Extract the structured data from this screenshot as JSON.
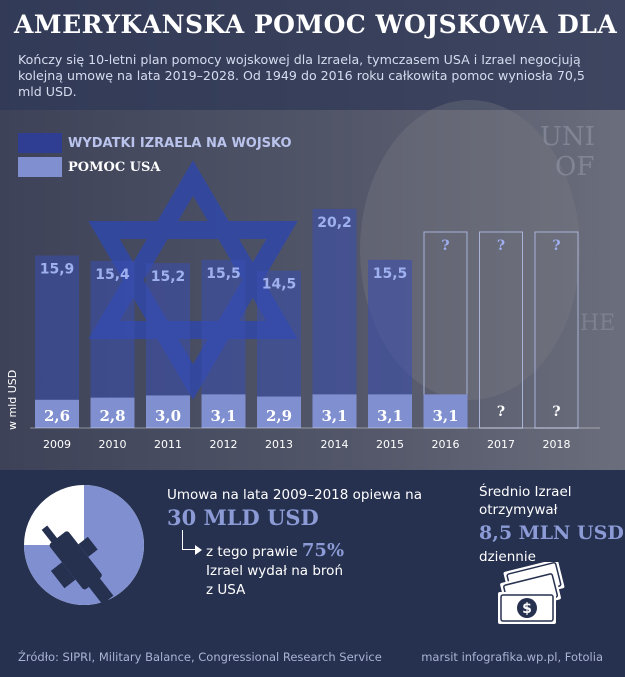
{
  "title": "AMERYKANSKA POMOC WOJSKOWA DLA IZRAELA",
  "subtitle": "Kończy się 10-letni plan pomocy wojskowej dla Izraela, tymczasem USA i Izrael negocjują kolejną umowę na lata 2019–2028. Od 1949 do 2016 roku całkowita pomoc wyniosła 70,5 mld USD.",
  "colors": {
    "background": "#26304f",
    "spending_bar": "#3a4a9a",
    "aid_bar": "#7f8fd0",
    "accent": "#8c9bd6"
  },
  "chart_data": {
    "type": "bar",
    "ylabel": "w mld USD",
    "categories": [
      "2009",
      "2010",
      "2011",
      "2012",
      "2013",
      "2014",
      "2015",
      "2016",
      "2017",
      "2018"
    ],
    "series": [
      {
        "name": "WYDATKI IZRAELA NA WOJSKO",
        "values": [
          15.9,
          15.4,
          15.2,
          15.5,
          14.5,
          20.2,
          15.5,
          null,
          null,
          null
        ],
        "labels": [
          "15,9",
          "15,4",
          "15,2",
          "15,5",
          "14,5",
          "20,2",
          "15,5",
          "?",
          "?",
          "?"
        ]
      },
      {
        "name": "POMOC USA",
        "values": [
          2.6,
          2.8,
          3.0,
          3.1,
          2.9,
          3.1,
          3.1,
          3.1,
          null,
          null
        ],
        "labels": [
          "2,6",
          "2,8",
          "3,0",
          "3,1",
          "2,9",
          "3,1",
          "3,1",
          "3,1",
          "?",
          "?"
        ]
      }
    ]
  },
  "deal": {
    "line1": "Umowa na lata 2009–2018 opiewa na",
    "amount": "30 MLD USD",
    "line2_prefix": "z tego prawie",
    "percent": "75%",
    "percent_value": 0.75,
    "line3": "Izrael wydał na broń",
    "line4": "z USA",
    "icon": "rifle-icon"
  },
  "average": {
    "line1": "Średnio Izrael",
    "line2": "otrzymywał",
    "amount": "8,5 MLN USD",
    "line3": "dziennie",
    "icon": "money-stack-icon"
  },
  "footer": {
    "source": "Źródło: SIPRI, Military Balance, Congressional Research Service",
    "credit": "marsit infografika.wp.pl, Fotolia"
  }
}
